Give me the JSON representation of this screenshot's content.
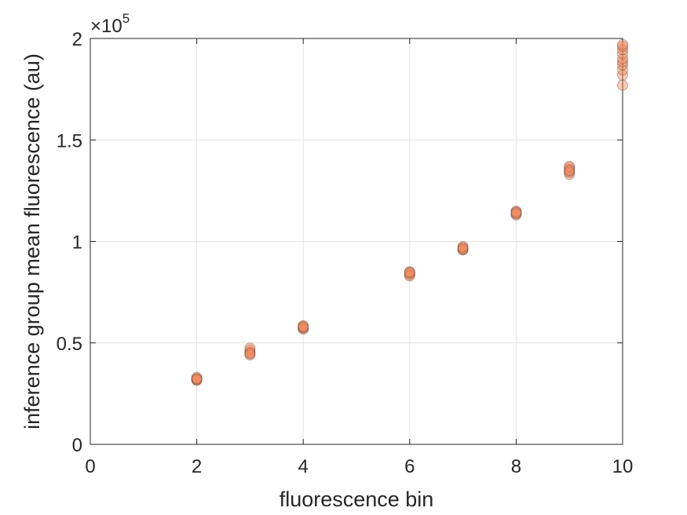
{
  "chart_data": {
    "type": "scatter",
    "title": "",
    "xlabel": "fluorescence bin",
    "ylabel": "inference group mean fluorescence (au)",
    "xlim": [
      0,
      10
    ],
    "ylim": [
      0,
      200000
    ],
    "y_exponent_label": {
      "base": "×10",
      "power": "5"
    },
    "xticks": [
      0,
      2,
      4,
      6,
      8,
      10
    ],
    "xtick_labels": [
      "0",
      "2",
      "4",
      "6",
      "8",
      "10"
    ],
    "yticks": [
      0,
      50000,
      100000,
      150000,
      200000
    ],
    "ytick_labels": [
      "0",
      "0.5",
      "1",
      "1.5",
      "2"
    ],
    "grid": true,
    "marker_color": "#f08a5f",
    "marker_edge_color": "#5a3a2e",
    "series": [
      {
        "x": [
          2,
          2,
          2,
          2,
          2,
          2,
          3,
          3,
          3,
          3,
          3,
          3,
          4,
          4,
          4,
          4,
          4,
          4,
          6,
          6,
          6,
          6,
          6,
          6,
          7,
          7,
          7,
          7,
          7,
          7,
          8,
          8,
          8,
          8,
          8,
          8,
          9,
          9,
          9,
          9,
          9,
          9,
          9,
          10,
          10,
          10,
          10,
          10,
          10,
          10,
          10,
          10,
          10
        ],
        "y": [
          31500,
          32000,
          32500,
          33000,
          31800,
          32300,
          44500,
          45500,
          46500,
          47500,
          44000,
          45000,
          57000,
          57800,
          58500,
          56800,
          57500,
          58000,
          83500,
          84000,
          85000,
          84500,
          83000,
          84800,
          96000,
          96500,
          97500,
          95800,
          96200,
          97000,
          113000,
          114000,
          114500,
          115000,
          113500,
          114200,
          133000,
          134500,
          135500,
          136500,
          137000,
          134000,
          135000,
          177000,
          182000,
          184500,
          187000,
          188500,
          190000,
          192500,
          194500,
          196000,
          197000
        ]
      }
    ]
  }
}
